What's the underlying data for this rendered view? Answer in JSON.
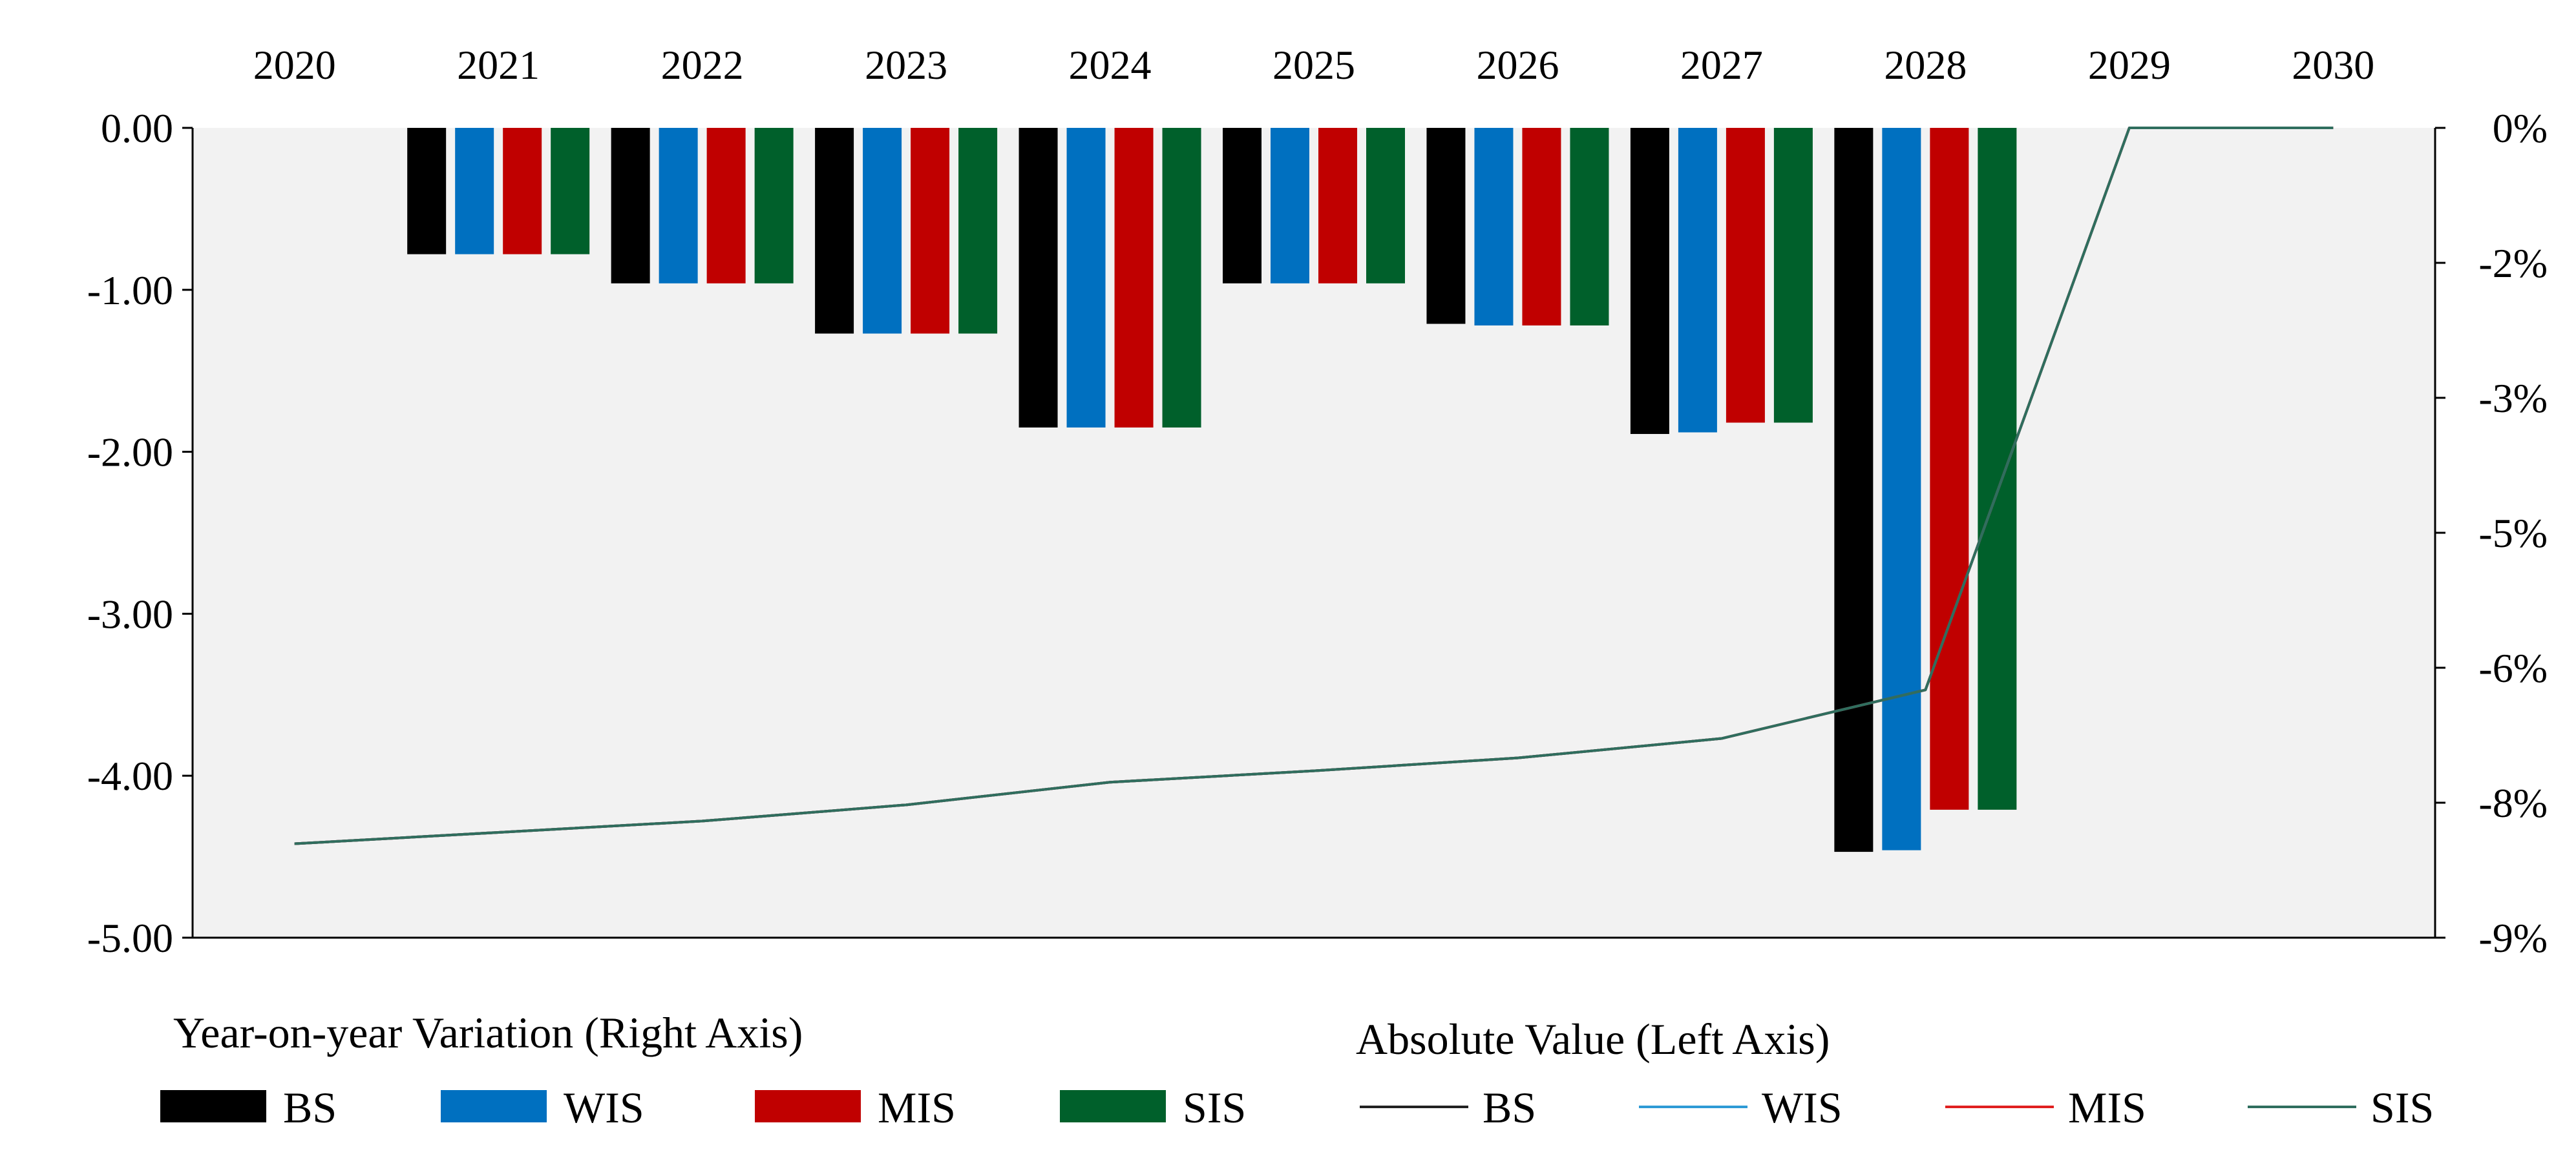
{
  "chart_data": {
    "type": "bar+line",
    "categories": [
      "2020",
      "2021",
      "2022",
      "2023",
      "2024",
      "2025",
      "2026",
      "2027",
      "2028",
      "2029",
      "2030"
    ],
    "left_axis": {
      "ylim": [
        -5,
        0
      ],
      "tick_values": [
        0,
        -1,
        -2,
        -3,
        -4,
        -5
      ],
      "tick_labels": [
        "0.00",
        "-1.00",
        "-2.00",
        "-3.00",
        "-4.00",
        "-5.00"
      ]
    },
    "right_axis": {
      "tick_labels": [
        "0%",
        "-2%",
        "-3%",
        "-5%",
        "-6%",
        "-8%",
        "-9%"
      ]
    },
    "bar_series": [
      {
        "name": "BS",
        "color": "#000000",
        "values": [
          0,
          -0.78,
          -0.96,
          -1.27,
          -1.85,
          -0.96,
          -1.21,
          -1.89,
          -4.47,
          0,
          0
        ]
      },
      {
        "name": "WIS",
        "color": "#0070c0",
        "values": [
          0,
          -0.78,
          -0.96,
          -1.27,
          -1.85,
          -0.96,
          -1.22,
          -1.88,
          -4.46,
          0,
          0
        ]
      },
      {
        "name": "MIS",
        "color": "#c00000",
        "values": [
          0,
          -0.78,
          -0.96,
          -1.27,
          -1.85,
          -0.96,
          -1.22,
          -1.82,
          -4.21,
          0,
          0
        ]
      },
      {
        "name": "SIS",
        "color": "#00602b",
        "values": [
          0,
          -0.78,
          -0.96,
          -1.27,
          -1.85,
          -0.96,
          -1.22,
          -1.82,
          -4.21,
          0,
          0
        ]
      }
    ],
    "line_series": [
      {
        "name": "BS",
        "color": "#222222",
        "values": [
          -4.42,
          -4.35,
          -4.28,
          -4.18,
          -4.04,
          -3.97,
          -3.89,
          -3.77,
          -3.47,
          0.0,
          0.0
        ]
      },
      {
        "name": "WIS",
        "color": "#2e9bd6",
        "values": [
          -4.42,
          -4.35,
          -4.28,
          -4.18,
          -4.04,
          -3.97,
          -3.89,
          -3.77,
          -3.47,
          0.0,
          0.0
        ]
      },
      {
        "name": "MIS",
        "color": "#e02020",
        "values": [
          -4.42,
          -4.35,
          -4.28,
          -4.18,
          -4.04,
          -3.97,
          -3.89,
          -3.77,
          -3.47,
          0.0,
          0.0
        ]
      },
      {
        "name": "SIS",
        "color": "#2f6e5e",
        "values": [
          -4.42,
          -4.35,
          -4.28,
          -4.18,
          -4.04,
          -3.97,
          -3.89,
          -3.77,
          -3.47,
          0.0,
          0.0
        ]
      }
    ],
    "caption_left": "Year-on-year Variation (Right Axis)",
    "caption_right": "Absolute Value (Left Axis)",
    "legend": {
      "bars": [
        "BS",
        "WIS",
        "MIS",
        "SIS"
      ],
      "lines": [
        "BS",
        "WIS",
        "MIS",
        "SIS"
      ]
    },
    "colors": {
      "plot_background": "#f2f2f2"
    }
  }
}
